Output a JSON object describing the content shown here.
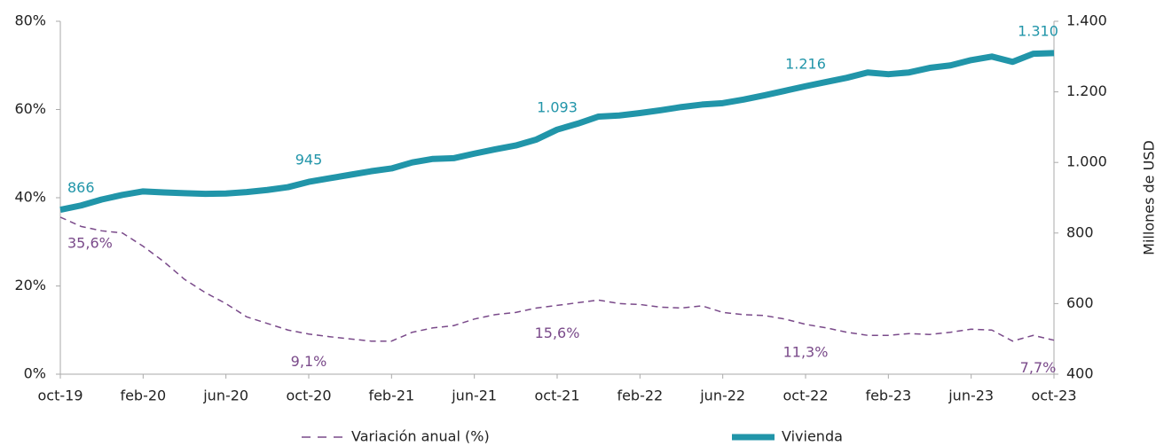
{
  "chart_data": {
    "type": "line",
    "categories": [
      "oct-19",
      null,
      null,
      null,
      "feb-20",
      null,
      null,
      null,
      "jun-20",
      null,
      null,
      null,
      "oct-20",
      null,
      null,
      null,
      "feb-21",
      null,
      null,
      null,
      "jun-21",
      null,
      null,
      null,
      "oct-21",
      null,
      null,
      null,
      "feb-22",
      null,
      null,
      null,
      "jun-22",
      null,
      null,
      null,
      "oct-22",
      null,
      null,
      null,
      "feb-23",
      null,
      null,
      null,
      "jun-23",
      null,
      null,
      null,
      "oct-23"
    ],
    "ylim": [
      0,
      80
    ],
    "yticks": [
      {
        "value": 0,
        "label": "0%"
      },
      {
        "value": 20,
        "label": "20%"
      },
      {
        "value": 40,
        "label": "40%"
      },
      {
        "value": 60,
        "label": "60%"
      },
      {
        "value": 80,
        "label": "80%"
      }
    ],
    "y2lim": [
      400,
      1400
    ],
    "y2ticks": [
      400,
      600,
      800,
      {
        "value": 1000,
        "label": "1.000"
      },
      {
        "value": 1200,
        "label": "1.200"
      },
      {
        "value": 1400,
        "label": "1.400"
      }
    ],
    "y2label": "Millones de USD",
    "series": [
      {
        "name": "Variación anual (%)",
        "color": "#7a4a8a",
        "dashed": true,
        "values": [
          35.6,
          33.5,
          32.5,
          32,
          29,
          25.5,
          21.5,
          18.5,
          16,
          13,
          11.5,
          10,
          9.1,
          8.5,
          8,
          7.5,
          7.5,
          9.5,
          10.5,
          11,
          12.5,
          13.5,
          14,
          15,
          15.6,
          16.2,
          16.8,
          16,
          15.8,
          15.2,
          15,
          15.5,
          14,
          13.5,
          13.3,
          12.5,
          11.3,
          10.5,
          9.5,
          8.8,
          8.8,
          9.2,
          9,
          9.5,
          10.2,
          10,
          7.5,
          8.8,
          7.7
        ],
        "value_labels": [
          "35,6%",
          null,
          null,
          null,
          null,
          null,
          null,
          null,
          null,
          null,
          null,
          null,
          "9,1%",
          null,
          null,
          null,
          null,
          null,
          null,
          null,
          null,
          null,
          null,
          null,
          "15,6%",
          null,
          null,
          null,
          null,
          null,
          null,
          null,
          null,
          null,
          null,
          null,
          "11,3%",
          null,
          null,
          null,
          null,
          null,
          null,
          null,
          null,
          null,
          null,
          null,
          "7,7%"
        ]
      },
      {
        "name": "Vivienda",
        "color": "#2195a9",
        "axis": "y2",
        "values": [
          866,
          878,
          895,
          908,
          918,
          915,
          913,
          911,
          912,
          916,
          922,
          930,
          945,
          955,
          965,
          975,
          983,
          1000,
          1010,
          1012,
          1025,
          1037,
          1048,
          1065,
          1093,
          1110,
          1130,
          1133,
          1140,
          1148,
          1157,
          1164,
          1168,
          1178,
          1190,
          1203,
          1216,
          1228,
          1240,
          1255,
          1250,
          1255,
          1268,
          1275,
          1290,
          1300,
          1285,
          1308,
          1310
        ],
        "value_labels": [
          "866",
          null,
          null,
          null,
          null,
          null,
          null,
          null,
          null,
          null,
          null,
          null,
          "945",
          null,
          null,
          null,
          null,
          null,
          null,
          null,
          null,
          null,
          null,
          null,
          "1.093",
          null,
          null,
          null,
          null,
          null,
          null,
          null,
          null,
          null,
          null,
          null,
          "1.216",
          null,
          null,
          null,
          null,
          null,
          null,
          null,
          null,
          null,
          null,
          null,
          "1.310"
        ]
      }
    ]
  }
}
